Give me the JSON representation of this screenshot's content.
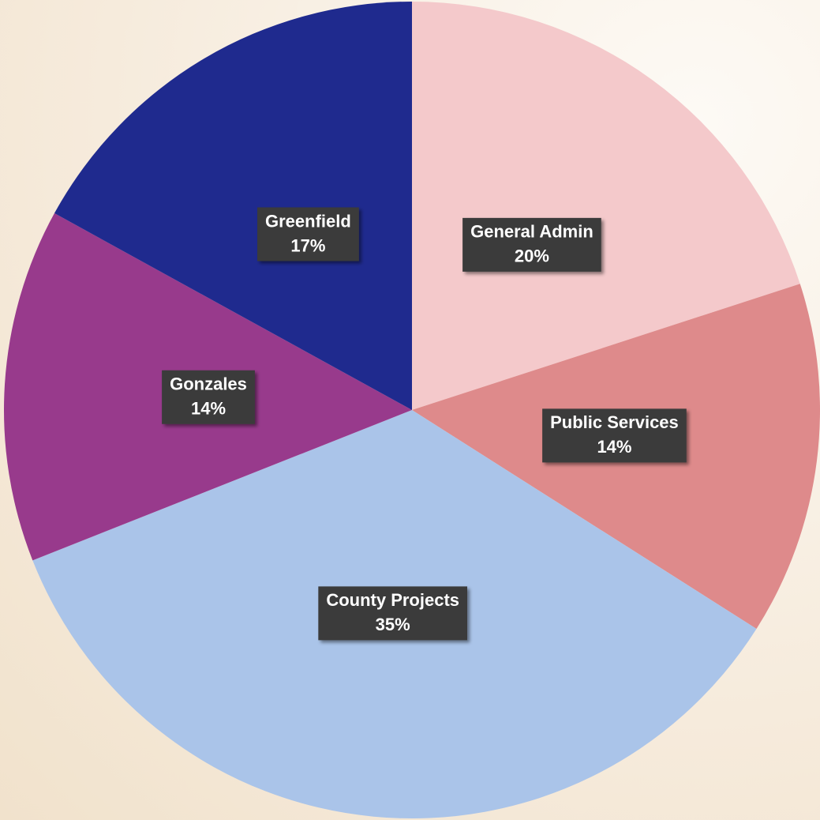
{
  "chart_data": {
    "type": "pie",
    "categories": [
      "General Admin",
      "Public Services",
      "County Projects",
      "Gonzales",
      "Greenfield"
    ],
    "values": [
      20,
      14,
      35,
      14,
      17
    ],
    "value_labels": [
      "20%",
      "14%",
      "35%",
      "14%",
      "17%"
    ],
    "colors": [
      "#f4c9cb",
      "#de8a8b",
      "#aac4e9",
      "#983a8c",
      "#1f2a8e"
    ]
  }
}
